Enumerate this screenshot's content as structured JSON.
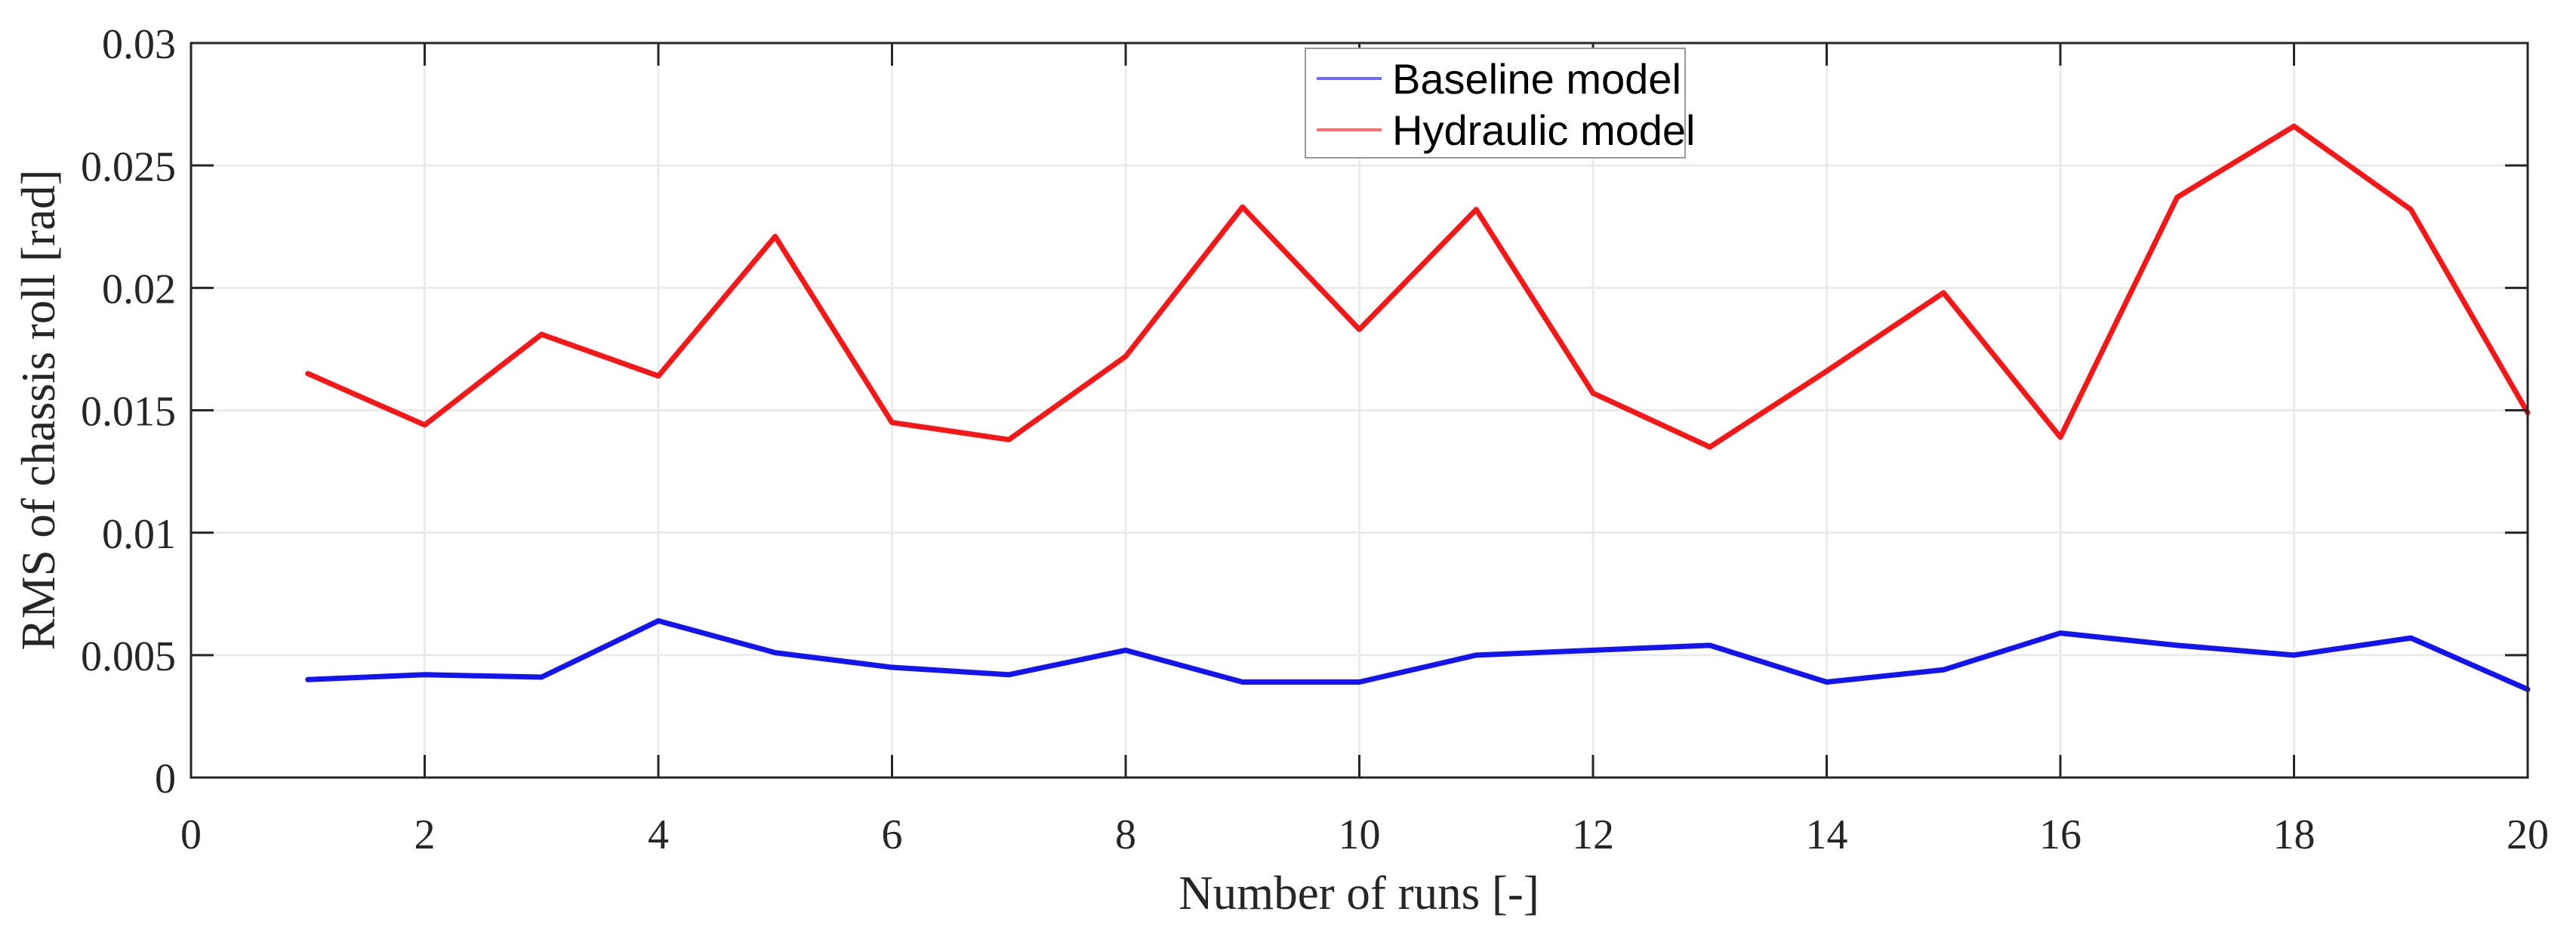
{
  "figure": {
    "background": "#ffffff"
  },
  "chart_data": {
    "type": "line",
    "title": "",
    "xlabel": "Number of runs [-]",
    "ylabel": "RMS of chassis roll [rad]",
    "xlim": [
      0,
      20
    ],
    "ylim": [
      0,
      0.03
    ],
    "grid": true,
    "xticks": {
      "values": [
        0,
        2,
        4,
        6,
        8,
        10,
        12,
        14,
        16,
        18,
        20
      ],
      "labels": [
        "0",
        "2",
        "4",
        "6",
        "8",
        "10",
        "12",
        "14",
        "16",
        "18",
        "20"
      ]
    },
    "yticks": {
      "values": [
        0,
        0.005,
        0.01,
        0.015,
        0.02,
        0.025,
        0.03
      ],
      "labels": [
        "0",
        "0.005",
        "0.01",
        "0.015",
        "0.02",
        "0.025",
        "0.03"
      ]
    },
    "x": [
      1,
      2,
      3,
      4,
      5,
      6,
      7,
      8,
      9,
      10,
      11,
      12,
      13,
      14,
      15,
      16,
      17,
      18,
      19,
      20
    ],
    "series": [
      {
        "name": "Baseline model",
        "color": "#1414f0",
        "values": [
          0.004,
          0.0042,
          0.0041,
          0.0064,
          0.0051,
          0.0045,
          0.0042,
          0.0052,
          0.0039,
          0.0039,
          0.005,
          0.0052,
          0.0054,
          0.0039,
          0.0044,
          0.0059,
          0.0054,
          0.005,
          0.0057,
          0.0036
        ]
      },
      {
        "name": "Hydraulic model",
        "color": "#f81616",
        "values": [
          0.0165,
          0.0144,
          0.0181,
          0.0164,
          0.0221,
          0.0145,
          0.0138,
          0.0172,
          0.0233,
          0.0183,
          0.0232,
          0.0157,
          0.0135,
          0.0166,
          0.0198,
          0.0139,
          0.0237,
          0.0266,
          0.0232,
          0.0149
        ]
      }
    ],
    "legend": {
      "position": "top-center",
      "items": [
        "Baseline model",
        "Hydraulic model"
      ]
    },
    "colors": {
      "grid": "#ebebeb",
      "axis_box": "#262626",
      "tick_label": "#262626",
      "legend_border": "#999999",
      "legend_background": "#ffffff"
    }
  }
}
